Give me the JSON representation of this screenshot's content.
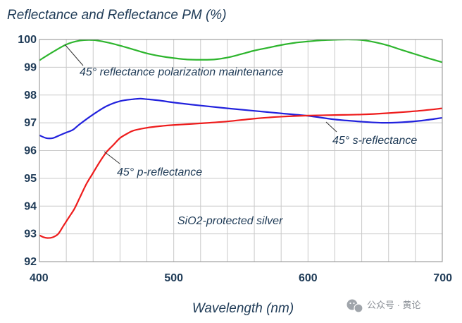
{
  "chart_data": {
    "type": "line",
    "title": "Reflectance and Reflectance PM (%)",
    "xlabel": "Wavelength (nm)",
    "ylabel": "",
    "xlim": [
      400,
      700
    ],
    "ylim": [
      92,
      100
    ],
    "xticks": [
      400,
      500,
      600,
      700
    ],
    "yticks": [
      92,
      93,
      94,
      95,
      96,
      97,
      98,
      99,
      100
    ],
    "grid": true,
    "series": [
      {
        "name": "45° reflectance polarization maintenance",
        "color": "#2db52d",
        "x": [
          400,
          410,
          420,
          430,
          440,
          450,
          460,
          470,
          480,
          490,
          500,
          510,
          520,
          530,
          540,
          550,
          560,
          570,
          580,
          590,
          600,
          610,
          620,
          630,
          640,
          650,
          660,
          670,
          680,
          690,
          700
        ],
        "y": [
          99.25,
          99.55,
          99.82,
          99.96,
          99.98,
          99.9,
          99.78,
          99.64,
          99.5,
          99.4,
          99.33,
          99.28,
          99.27,
          99.28,
          99.35,
          99.47,
          99.6,
          99.7,
          99.8,
          99.88,
          99.93,
          99.97,
          99.99,
          100.0,
          99.98,
          99.9,
          99.78,
          99.62,
          99.47,
          99.32,
          99.18
        ]
      },
      {
        "name": "45° s-reflectance",
        "color": "#2222dd",
        "x": [
          400,
          405,
          410,
          415,
          420,
          425,
          430,
          440,
          450,
          460,
          470,
          475,
          480,
          490,
          500,
          520,
          540,
          560,
          580,
          600,
          620,
          640,
          655,
          670,
          685,
          700
        ],
        "y": [
          96.55,
          96.45,
          96.45,
          96.55,
          96.65,
          96.75,
          96.95,
          97.3,
          97.6,
          97.78,
          97.85,
          97.87,
          97.85,
          97.8,
          97.73,
          97.62,
          97.52,
          97.43,
          97.34,
          97.25,
          97.12,
          97.04,
          97.0,
          97.02,
          97.08,
          97.18
        ]
      },
      {
        "name": "45° p-reflectance",
        "color": "#ee1c1c",
        "x": [
          400,
          403,
          406,
          410,
          414,
          418,
          422,
          426,
          430,
          435,
          440,
          445,
          450,
          455,
          460,
          465,
          470,
          480,
          490,
          500,
          520,
          540,
          560,
          580,
          600,
          620,
          640,
          660,
          680,
          700
        ],
        "y": [
          92.95,
          92.88,
          92.85,
          92.88,
          93.0,
          93.3,
          93.6,
          93.9,
          94.3,
          94.8,
          95.2,
          95.6,
          95.95,
          96.2,
          96.45,
          96.6,
          96.72,
          96.82,
          96.88,
          96.92,
          96.98,
          97.05,
          97.15,
          97.22,
          97.26,
          97.28,
          97.3,
          97.35,
          97.42,
          97.52
        ]
      }
    ],
    "annotations": [
      "45° reflectance polarization maintenance",
      "45° s-reflectance",
      "45° p-reflectance",
      "SiO2-protected silver"
    ]
  },
  "watermark": {
    "icon": "wechat-icon",
    "text": "公众号 · 黄论"
  }
}
